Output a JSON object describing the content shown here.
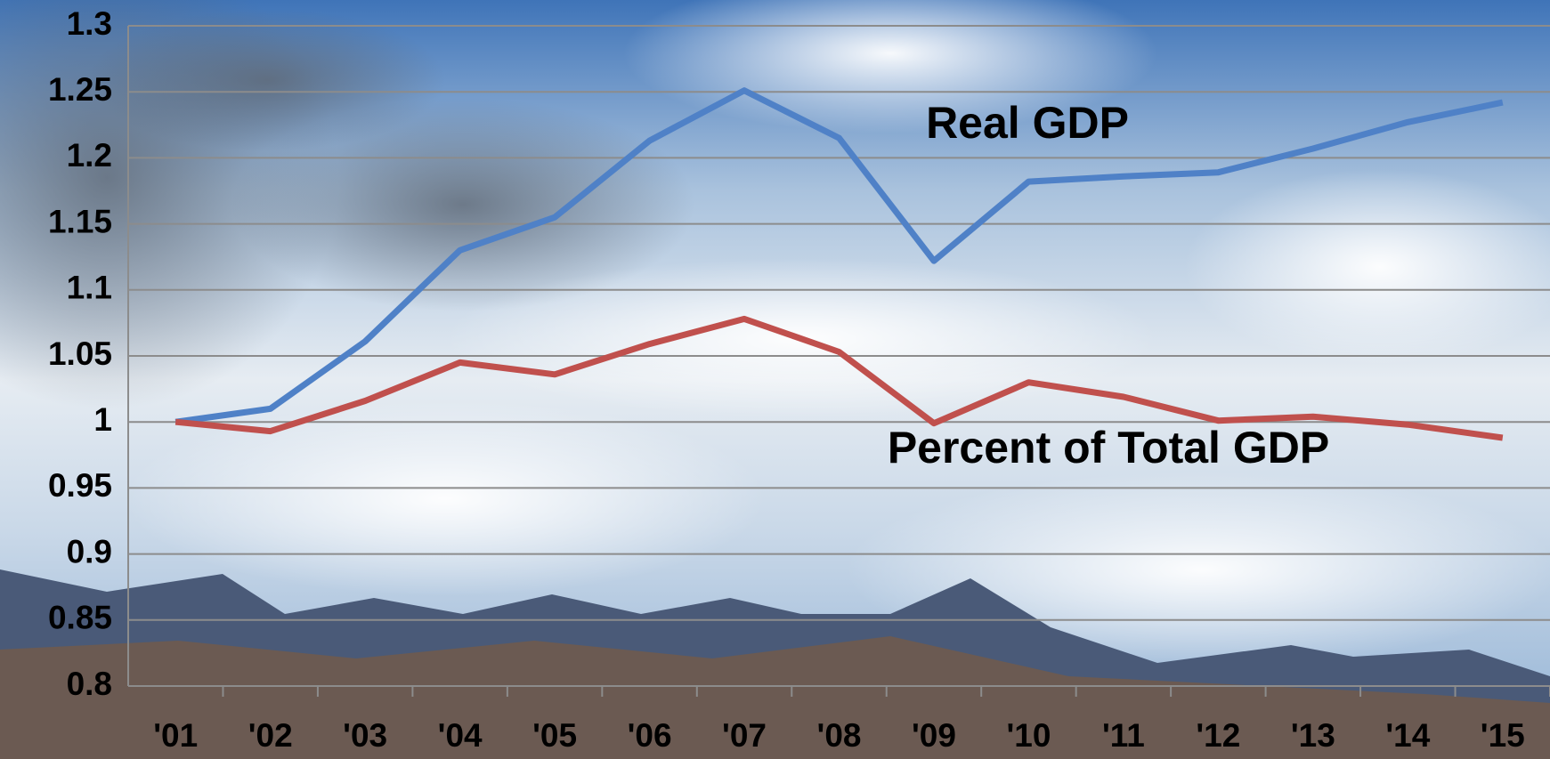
{
  "chart_data": {
    "type": "line",
    "categories": [
      "'01",
      "'02",
      "'03",
      "'04",
      "'05",
      "'06",
      "'07",
      "'08",
      "'09",
      "'10",
      "'11",
      "'12",
      "'13",
      "'14",
      "'15"
    ],
    "series": [
      {
        "name": "Real GDP",
        "color": "#4f81c7",
        "values": [
          1.0,
          1.01,
          1.061,
          1.13,
          1.155,
          1.213,
          1.251,
          1.215,
          1.122,
          1.182,
          1.186,
          1.189,
          1.207,
          1.227,
          1.242
        ]
      },
      {
        "name": "Percent of Total GDP",
        "color": "#c0504d",
        "values": [
          1.0,
          0.993,
          1.016,
          1.045,
          1.036,
          1.059,
          1.078,
          1.053,
          0.999,
          1.03,
          1.019,
          1.001,
          1.004,
          0.998,
          0.988
        ]
      }
    ],
    "ylim": [
      0.8,
      1.3
    ],
    "yticks": [
      0.8,
      0.85,
      0.9,
      0.95,
      1,
      1.05,
      1.1,
      1.15,
      1.2,
      1.25,
      1.3
    ],
    "grid": true
  }
}
